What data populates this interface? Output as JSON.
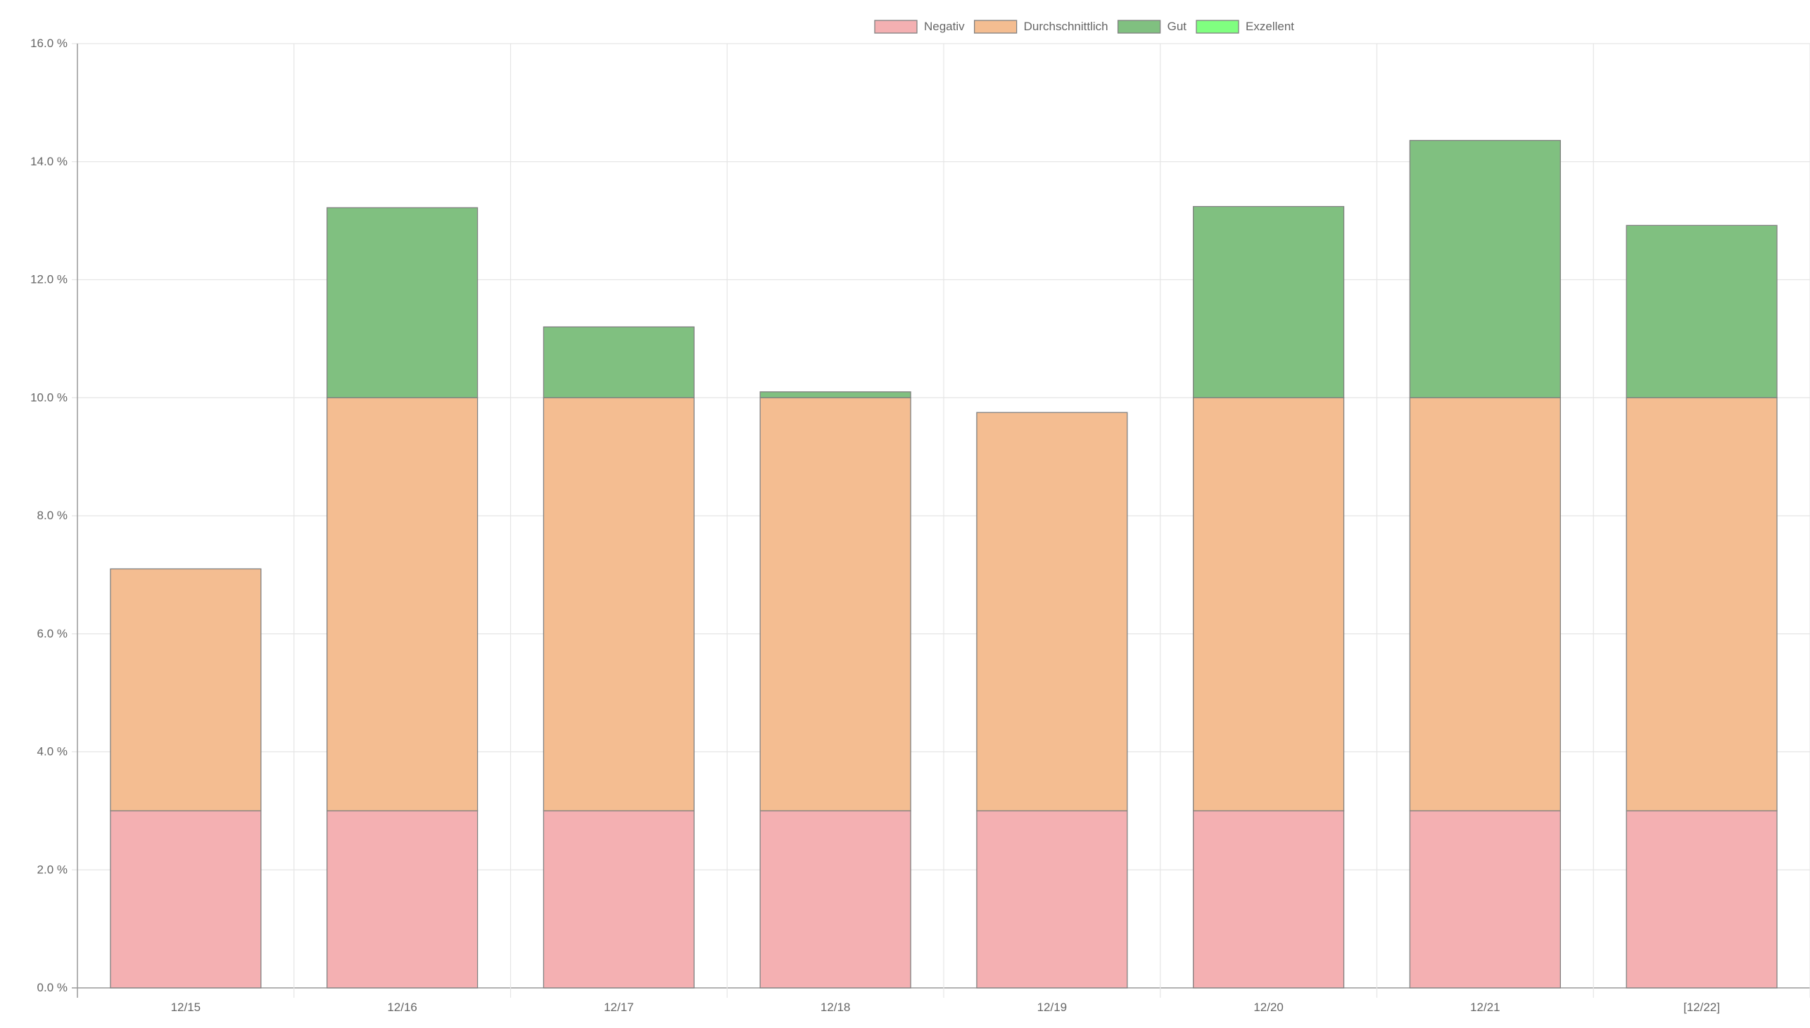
{
  "chart_data": {
    "type": "bar",
    "stacked": true,
    "categories": [
      "12/15",
      "12/16",
      "12/17",
      "12/18",
      "12/19",
      "12/20",
      "12/21",
      "[12/22]"
    ],
    "series": [
      {
        "name": "Negativ",
        "color": "#f4b0b2",
        "values": [
          3.0,
          3.0,
          3.0,
          3.0,
          3.0,
          3.0,
          3.0,
          3.0
        ]
      },
      {
        "name": "Durchschnittlich",
        "color": "#f4bd91",
        "values": [
          4.1,
          7.0,
          7.0,
          7.0,
          6.75,
          7.0,
          7.0,
          7.0
        ]
      },
      {
        "name": "Gut",
        "color": "#80c080",
        "values": [
          0.0,
          3.22,
          1.2,
          0.1,
          0.0,
          3.24,
          4.36,
          2.92
        ]
      },
      {
        "name": "Exzellent",
        "color": "#80ff80",
        "values": [
          0,
          0,
          0,
          0,
          0,
          0,
          0,
          0
        ]
      }
    ],
    "ylim": [
      0,
      16
    ],
    "yticks": [
      0,
      2,
      4,
      6,
      8,
      10,
      12,
      14,
      16
    ],
    "ytick_labels": [
      "0.0 %",
      "2.0 %",
      "4.0 %",
      "6.0 %",
      "8.0 %",
      "10.0 %",
      "12.0 %",
      "14.0 %",
      "16.0 %"
    ],
    "grid": true,
    "legend_position": "top",
    "border_color": "#808080",
    "grid_color": "#e5e5e5",
    "axis_color": "#999999",
    "text_color": "#666666"
  }
}
